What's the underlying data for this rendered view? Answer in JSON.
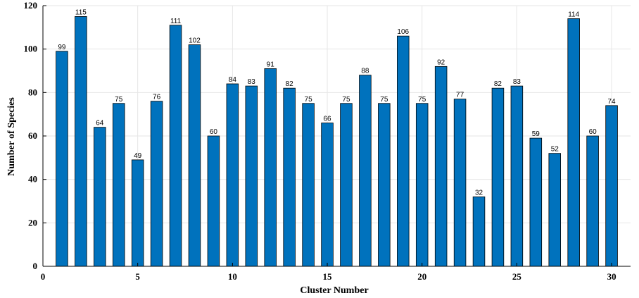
{
  "chart_data": {
    "type": "bar",
    "title": "",
    "xlabel": "Cluster Number",
    "ylabel": "Number of Species",
    "x": [
      1,
      2,
      3,
      4,
      5,
      6,
      7,
      8,
      9,
      10,
      11,
      12,
      13,
      14,
      15,
      16,
      17,
      18,
      19,
      20,
      21,
      22,
      23,
      24,
      25,
      26,
      27,
      28,
      29,
      30
    ],
    "values": [
      99,
      115,
      64,
      75,
      49,
      76,
      111,
      102,
      60,
      84,
      83,
      91,
      82,
      75,
      66,
      75,
      88,
      75,
      106,
      75,
      92,
      77,
      32,
      82,
      83,
      59,
      52,
      114,
      60,
      74
    ],
    "data_labels": [
      "99",
      "115",
      "64",
      "75",
      "49",
      "76",
      "111",
      "102",
      "60",
      "84",
      "83",
      "91",
      "82",
      "75",
      "66",
      "75",
      "88",
      "75",
      "106",
      "75",
      "92",
      "77",
      "32",
      "82",
      "83",
      "59",
      "52",
      "114",
      "60",
      "74"
    ],
    "xlim": [
      0,
      31
    ],
    "ylim": [
      0,
      120
    ],
    "xticks": [
      "0",
      "5",
      "10",
      "15",
      "20",
      "25",
      "30"
    ],
    "yticks": [
      "0",
      "20",
      "40",
      "60",
      "80",
      "100",
      "120"
    ],
    "grid": true,
    "legend": "none",
    "bar_color": "#0072BD"
  }
}
